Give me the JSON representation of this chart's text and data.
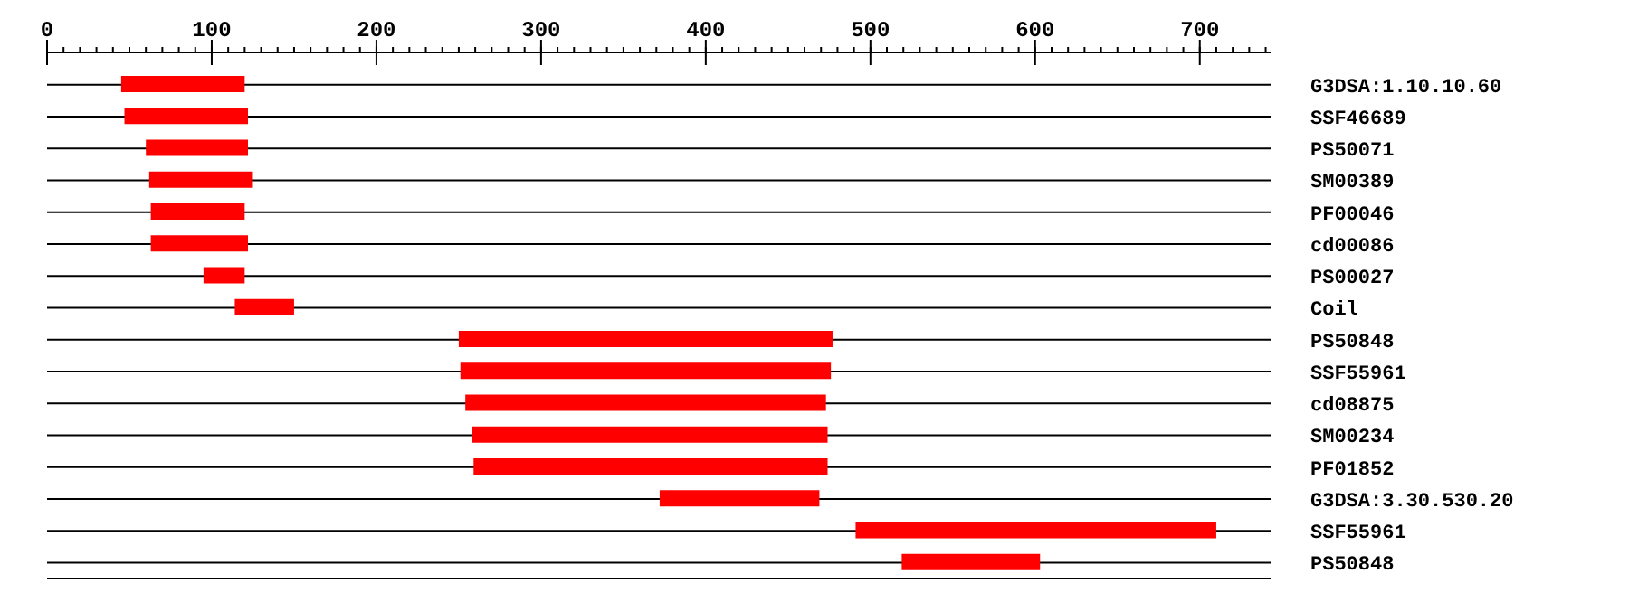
{
  "chart_data": {
    "type": "bar",
    "orientation": "horizontal",
    "categories": [
      "G3DSA:1.10.10.60",
      "SSF46689",
      "PS50071",
      "SM00389",
      "PF00046",
      "cd00086",
      "PS00027",
      "Coil",
      "PS50848",
      "SSF55961",
      "cd08875",
      "SM00234",
      "PF01852",
      "G3DSA:3.30.530.20",
      "SSF55961",
      "PS50848"
    ],
    "base": [
      45,
      47,
      60,
      62,
      63,
      63,
      95,
      114,
      250,
      251,
      254,
      258,
      259,
      372,
      491,
      519
    ],
    "values": [
      75,
      75,
      62,
      63,
      57,
      59,
      25,
      36,
      227,
      225,
      219,
      216,
      215,
      97,
      219,
      84
    ],
    "color": "#ff0000",
    "xlim": [
      0,
      743
    ],
    "xticks": [
      0,
      {
        "value": 10,
        "label": null
      },
      {
        "value": 20,
        "label": null
      },
      {
        "value": 30,
        "label": null
      },
      {
        "value": 40,
        "label": null
      },
      {
        "value": 50,
        "label": null
      },
      {
        "value": 60,
        "label": null
      },
      {
        "value": 70,
        "label": null
      },
      {
        "value": 80,
        "label": null
      },
      {
        "value": 90,
        "label": null
      },
      100,
      {
        "value": 110,
        "label": null
      },
      {
        "value": 120,
        "label": null
      },
      {
        "value": 130,
        "label": null
      },
      {
        "value": 140,
        "label": null
      },
      {
        "value": 150,
        "label": null
      },
      {
        "value": 160,
        "label": null
      },
      {
        "value": 170,
        "label": null
      },
      {
        "value": 180,
        "label": null
      },
      {
        "value": 190,
        "label": null
      },
      200,
      {
        "value": 210,
        "label": null
      },
      {
        "value": 220,
        "label": null
      },
      {
        "value": 230,
        "label": null
      },
      {
        "value": 240,
        "label": null
      },
      {
        "value": 250,
        "label": null
      },
      {
        "value": 260,
        "label": null
      },
      {
        "value": 270,
        "label": null
      },
      {
        "value": 280,
        "label": null
      },
      {
        "value": 290,
        "label": null
      },
      300,
      {
        "value": 310,
        "label": null
      },
      {
        "value": 320,
        "label": null
      },
      {
        "value": 330,
        "label": null
      },
      {
        "value": 340,
        "label": null
      },
      {
        "value": 350,
        "label": null
      },
      {
        "value": 360,
        "label": null
      },
      {
        "value": 370,
        "label": null
      },
      {
        "value": 380,
        "label": null
      },
      {
        "value": 390,
        "label": null
      },
      400,
      {
        "value": 410,
        "label": null
      },
      {
        "value": 420,
        "label": null
      },
      {
        "value": 430,
        "label": null
      },
      {
        "value": 440,
        "label": null
      },
      {
        "value": 450,
        "label": null
      },
      {
        "value": 460,
        "label": null
      },
      {
        "value": 470,
        "label": null
      },
      {
        "value": 480,
        "label": null
      },
      {
        "value": 490,
        "label": null
      },
      500,
      {
        "value": 510,
        "label": null
      },
      {
        "value": 520,
        "label": null
      },
      {
        "value": 530,
        "label": null
      },
      {
        "value": 540,
        "label": null
      },
      {
        "value": 550,
        "label": null
      },
      {
        "value": 560,
        "label": null
      },
      {
        "value": 570,
        "label": null
      },
      {
        "value": 580,
        "label": null
      },
      {
        "value": 590,
        "label": null
      },
      600,
      {
        "value": 610,
        "label": null
      },
      {
        "value": 620,
        "label": null
      },
      {
        "value": 630,
        "label": null
      },
      {
        "value": 640,
        "label": null
      },
      {
        "value": 650,
        "label": null
      },
      {
        "value": 660,
        "label": null
      },
      {
        "value": 670,
        "label": null
      },
      {
        "value": 680,
        "label": null
      },
      {
        "value": 690,
        "label": null
      },
      700,
      {
        "value": 710,
        "label": null
      },
      {
        "value": 720,
        "label": null
      },
      {
        "value": 730,
        "label": null
      },
      {
        "value": 740,
        "label": null
      }
    ],
    "grid": "y"
  }
}
